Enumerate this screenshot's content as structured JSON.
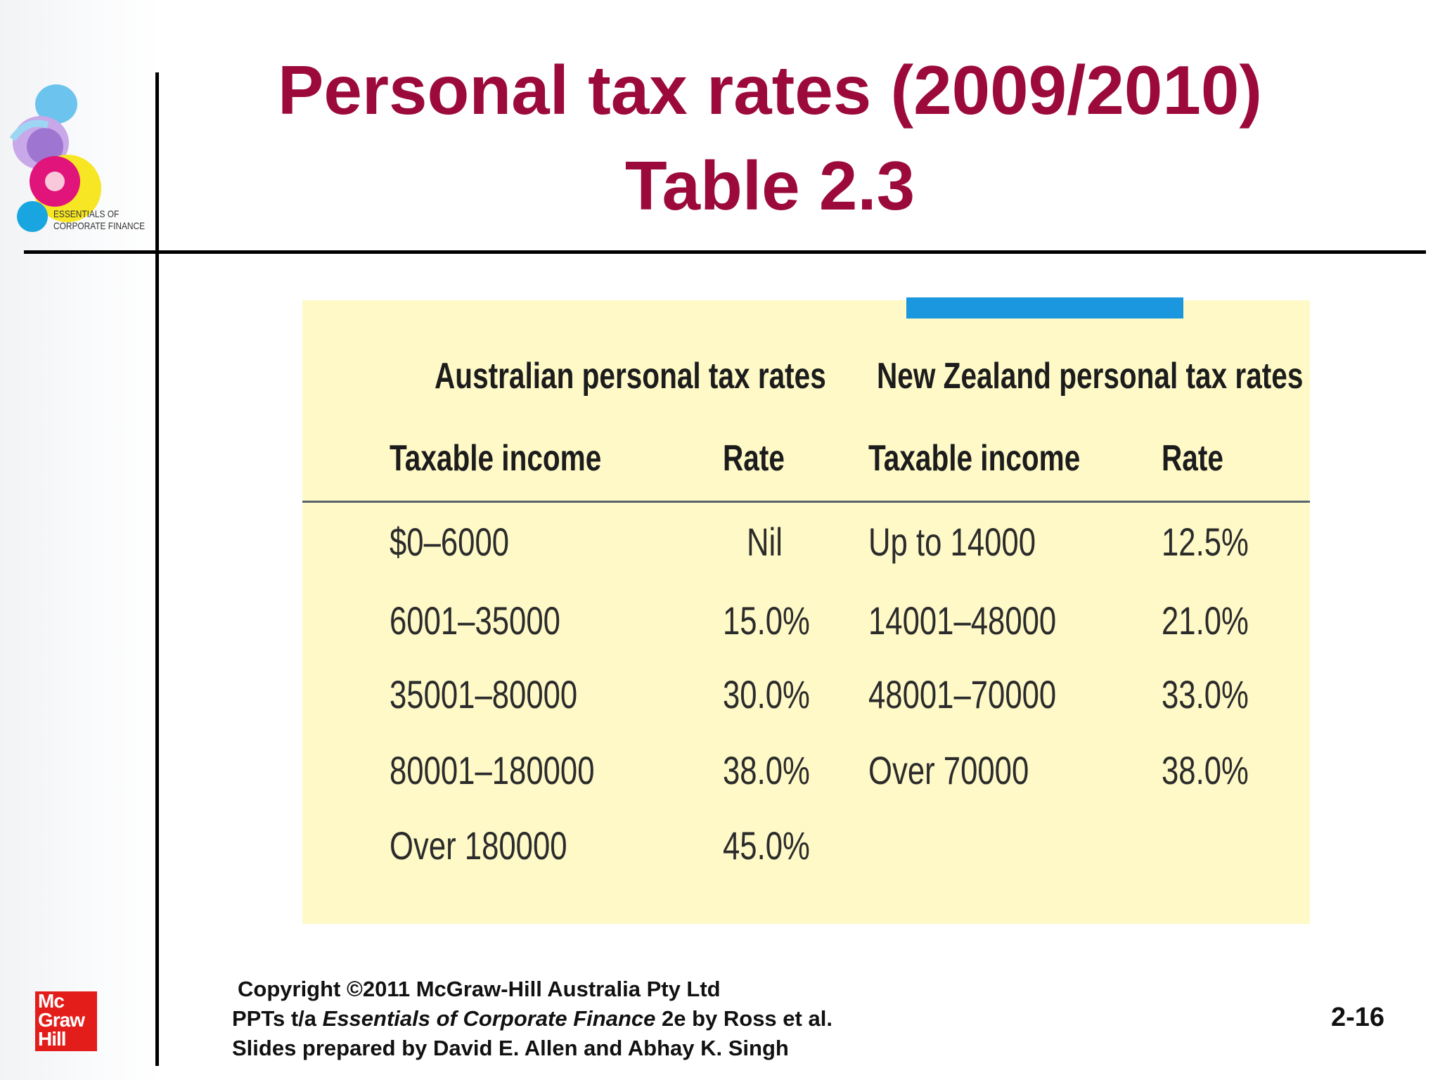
{
  "title": {
    "line1": "Personal tax rates (2009/2010)",
    "line2": "Table 2.3"
  },
  "logo": {
    "text_line1": "ESSENTIALS OF",
    "text_line2": "CORPORATE FINANCE"
  },
  "table": {
    "australia": {
      "heading": "Australian personal tax rates",
      "col_income": "Taxable income",
      "col_rate": "Rate",
      "rows": [
        {
          "income": "$0–6000",
          "rate": "Nil"
        },
        {
          "income": "6001–35000",
          "rate": "15.0%"
        },
        {
          "income": "35001–80000",
          "rate": "30.0%"
        },
        {
          "income": "80001–180000",
          "rate": "38.0%"
        },
        {
          "income": "Over 180000",
          "rate": "45.0%"
        }
      ]
    },
    "new_zealand": {
      "heading": "New Zealand personal tax rates",
      "col_income": "Taxable income",
      "col_rate": "Rate",
      "rows": [
        {
          "income": "Up to 14000",
          "rate": "12.5%"
        },
        {
          "income": "14001–48000",
          "rate": "21.0%"
        },
        {
          "income": "48001–70000",
          "rate": "33.0%"
        },
        {
          "income": "Over 70000",
          "rate": "38.0%"
        }
      ]
    }
  },
  "footer": {
    "line1": "Copyright ©2011 McGraw-Hill Australia Pty Ltd",
    "line2_pre": "PPTs t/a ",
    "line2_italic": "Essentials of Corporate Finance",
    "line2_post": " 2e by Ross et al.",
    "line3": "Slides prepared by David E. Allen and Abhay K. Singh"
  },
  "page_number": "2-16",
  "publisher_logo": {
    "line1": "Mc",
    "line2": "Graw",
    "line3": "Hill"
  },
  "colors": {
    "title": "#9b0a3b",
    "panel": "#fef9c7",
    "accent_bar": "#1a97de",
    "publisher_red": "#e31d1a"
  }
}
